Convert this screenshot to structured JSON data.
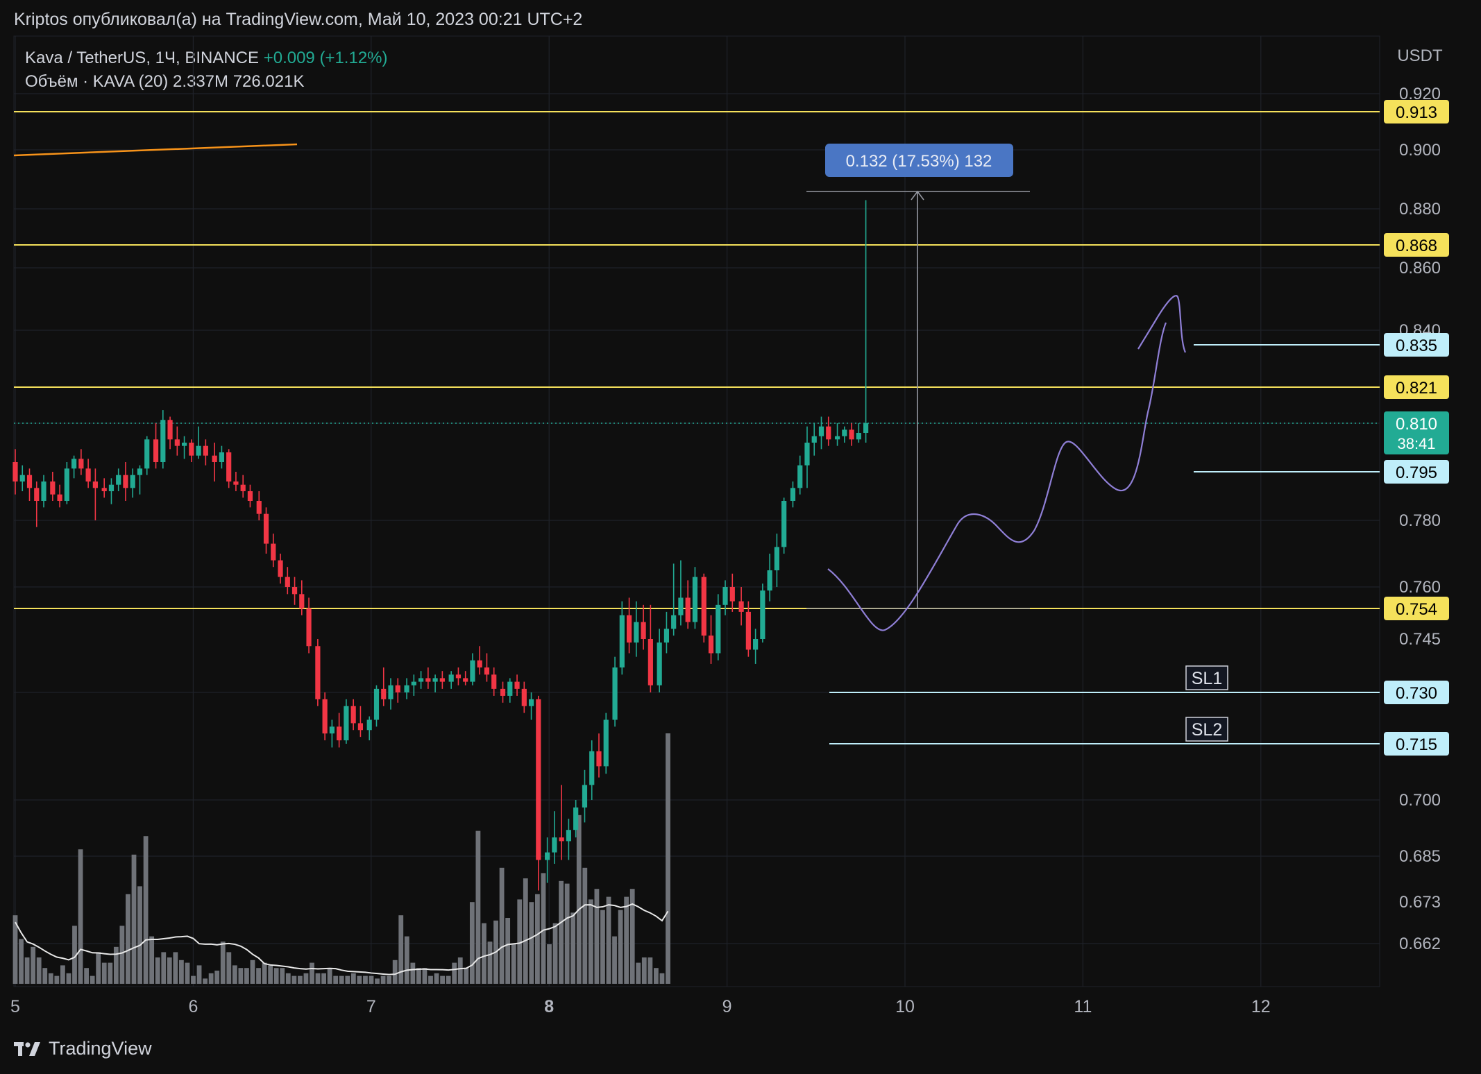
{
  "header": {
    "published": "Kriptos опубликовал(а) на TradingView.com, Май 10, 2023 00:21 UTC+2"
  },
  "legend": {
    "symbol": "Kava / TetherUS, 1Ч, BINANCE",
    "change": "+0.009 (+1.12%)",
    "volume_label": "Объём · KAVA (20)",
    "volume_value": "2.337M",
    "volume_ma": "726.021K"
  },
  "footer": {
    "brand": "TradingView"
  },
  "colors": {
    "background": "#0f0f0f",
    "grid": "#1f2229",
    "up": "#22ab94",
    "down": "#f23645",
    "level_yellow": "#f5e15b",
    "level_cyan": "#bfeefa",
    "projection": "#8f7fd6",
    "orange": "#f7931a",
    "measure_box": "#4a76c4"
  },
  "chart_data": {
    "type": "candlestick",
    "symbol": "KAVA/USDT",
    "interval": "1H",
    "y_axis_unit": "USDT",
    "y_ticks": [
      "0.920",
      "0.900",
      "0.880",
      "0.860",
      "0.840",
      "0.780",
      "0.760",
      "0.745",
      "0.700",
      "0.685",
      "0.673",
      "0.662"
    ],
    "x_ticks": [
      "5",
      "6",
      "7",
      "8",
      "9",
      "10",
      "11",
      "12"
    ],
    "grid": true,
    "candles_approx": [
      [
        5.0,
        0.798,
        0.802,
        0.788,
        0.792
      ],
      [
        5.04,
        0.792,
        0.797,
        0.789,
        0.794
      ],
      [
        5.08,
        0.794,
        0.796,
        0.786,
        0.79
      ],
      [
        5.12,
        0.79,
        0.792,
        0.778,
        0.786
      ],
      [
        5.16,
        0.786,
        0.794,
        0.784,
        0.792
      ],
      [
        5.21,
        0.792,
        0.795,
        0.786,
        0.788
      ],
      [
        5.25,
        0.788,
        0.791,
        0.784,
        0.786
      ],
      [
        5.29,
        0.786,
        0.798,
        0.785,
        0.796
      ],
      [
        5.33,
        0.796,
        0.8,
        0.793,
        0.799
      ],
      [
        5.37,
        0.799,
        0.802,
        0.794,
        0.796
      ],
      [
        5.41,
        0.796,
        0.799,
        0.79,
        0.792
      ],
      [
        5.45,
        0.792,
        0.796,
        0.78,
        0.79
      ],
      [
        5.5,
        0.79,
        0.793,
        0.787,
        0.789
      ],
      [
        5.54,
        0.789,
        0.793,
        0.785,
        0.791
      ],
      [
        5.58,
        0.791,
        0.796,
        0.789,
        0.794
      ],
      [
        5.62,
        0.794,
        0.798,
        0.786,
        0.79
      ],
      [
        5.66,
        0.79,
        0.796,
        0.787,
        0.794
      ],
      [
        5.7,
        0.794,
        0.797,
        0.788,
        0.796
      ],
      [
        5.74,
        0.796,
        0.806,
        0.794,
        0.805
      ],
      [
        5.79,
        0.805,
        0.81,
        0.796,
        0.798
      ],
      [
        5.83,
        0.798,
        0.814,
        0.796,
        0.811
      ],
      [
        5.87,
        0.811,
        0.812,
        0.802,
        0.805
      ],
      [
        5.91,
        0.805,
        0.809,
        0.8,
        0.803
      ],
      [
        5.95,
        0.803,
        0.806,
        0.799,
        0.804
      ],
      [
        5.99,
        0.804,
        0.805,
        0.798,
        0.8
      ],
      [
        6.03,
        0.8,
        0.809,
        0.799,
        0.803
      ],
      [
        6.07,
        0.803,
        0.805,
        0.797,
        0.8
      ],
      [
        6.12,
        0.8,
        0.804,
        0.792,
        0.798
      ],
      [
        6.16,
        0.798,
        0.803,
        0.796,
        0.801
      ],
      [
        6.2,
        0.801,
        0.802,
        0.79,
        0.792
      ],
      [
        6.24,
        0.792,
        0.795,
        0.789,
        0.791
      ],
      [
        6.28,
        0.791,
        0.794,
        0.787,
        0.789
      ],
      [
        6.32,
        0.789,
        0.791,
        0.784,
        0.786
      ],
      [
        6.37,
        0.786,
        0.789,
        0.78,
        0.782
      ],
      [
        6.41,
        0.782,
        0.784,
        0.77,
        0.773
      ],
      [
        6.45,
        0.773,
        0.776,
        0.766,
        0.768
      ],
      [
        6.49,
        0.768,
        0.77,
        0.761,
        0.763
      ],
      [
        6.53,
        0.763,
        0.766,
        0.758,
        0.76
      ],
      [
        6.57,
        0.76,
        0.763,
        0.755,
        0.758
      ],
      [
        6.61,
        0.758,
        0.762,
        0.752,
        0.754
      ],
      [
        6.65,
        0.754,
        0.757,
        0.741,
        0.743
      ],
      [
        6.7,
        0.743,
        0.745,
        0.726,
        0.728
      ],
      [
        6.74,
        0.728,
        0.73,
        0.716,
        0.718
      ],
      [
        6.78,
        0.718,
        0.722,
        0.714,
        0.72
      ],
      [
        6.82,
        0.72,
        0.724,
        0.714,
        0.716
      ],
      [
        6.86,
        0.716,
        0.728,
        0.715,
        0.726
      ],
      [
        6.9,
        0.726,
        0.728,
        0.719,
        0.721
      ],
      [
        6.94,
        0.721,
        0.726,
        0.717,
        0.719
      ],
      [
        6.99,
        0.719,
        0.723,
        0.716,
        0.722
      ],
      [
        7.03,
        0.722,
        0.732,
        0.72,
        0.731
      ],
      [
        7.07,
        0.731,
        0.737,
        0.726,
        0.728
      ],
      [
        7.11,
        0.728,
        0.734,
        0.725,
        0.732
      ],
      [
        7.15,
        0.732,
        0.734,
        0.727,
        0.73
      ],
      [
        7.2,
        0.73,
        0.734,
        0.728,
        0.732
      ],
      [
        7.24,
        0.732,
        0.735,
        0.729,
        0.733
      ],
      [
        7.28,
        0.733,
        0.736,
        0.731,
        0.734
      ],
      [
        7.32,
        0.734,
        0.737,
        0.731,
        0.733
      ],
      [
        7.36,
        0.733,
        0.735,
        0.73,
        0.734
      ],
      [
        7.4,
        0.734,
        0.736,
        0.731,
        0.733
      ],
      [
        7.45,
        0.733,
        0.736,
        0.731,
        0.735
      ],
      [
        7.49,
        0.735,
        0.737,
        0.732,
        0.734
      ],
      [
        7.53,
        0.734,
        0.736,
        0.732,
        0.733
      ],
      [
        7.57,
        0.733,
        0.741,
        0.732,
        0.739
      ],
      [
        7.61,
        0.739,
        0.743,
        0.735,
        0.737
      ],
      [
        7.65,
        0.737,
        0.741,
        0.733,
        0.735
      ],
      [
        7.69,
        0.735,
        0.737,
        0.729,
        0.731
      ],
      [
        7.74,
        0.731,
        0.733,
        0.727,
        0.729
      ],
      [
        7.78,
        0.729,
        0.734,
        0.727,
        0.733
      ],
      [
        7.82,
        0.733,
        0.735,
        0.729,
        0.731
      ],
      [
        7.86,
        0.731,
        0.733,
        0.724,
        0.726
      ],
      [
        7.9,
        0.726,
        0.73,
        0.722,
        0.728
      ],
      [
        7.94,
        0.728,
        0.729,
        0.676,
        0.684
      ],
      [
        7.99,
        0.684,
        0.69,
        0.678,
        0.686
      ],
      [
        8.03,
        0.686,
        0.697,
        0.683,
        0.69
      ],
      [
        8.07,
        0.69,
        0.704,
        0.684,
        0.689
      ],
      [
        8.11,
        0.689,
        0.695,
        0.684,
        0.692
      ],
      [
        8.15,
        0.692,
        0.7,
        0.69,
        0.698
      ],
      [
        8.2,
        0.698,
        0.708,
        0.694,
        0.704
      ],
      [
        8.24,
        0.704,
        0.716,
        0.7,
        0.713
      ],
      [
        8.28,
        0.713,
        0.718,
        0.706,
        0.709
      ],
      [
        8.32,
        0.709,
        0.724,
        0.707,
        0.722
      ],
      [
        8.37,
        0.722,
        0.74,
        0.72,
        0.737
      ],
      [
        8.41,
        0.737,
        0.756,
        0.735,
        0.752
      ],
      [
        8.45,
        0.752,
        0.757,
        0.741,
        0.744
      ],
      [
        8.49,
        0.744,
        0.756,
        0.74,
        0.75
      ],
      [
        8.53,
        0.75,
        0.755,
        0.742,
        0.745
      ],
      [
        8.57,
        0.745,
        0.755,
        0.73,
        0.732
      ],
      [
        8.62,
        0.732,
        0.748,
        0.73,
        0.744
      ],
      [
        8.66,
        0.744,
        0.753,
        0.741,
        0.748
      ],
      [
        8.7,
        0.748,
        0.767,
        0.746,
        0.752
      ],
      [
        8.74,
        0.752,
        0.768,
        0.749,
        0.757
      ],
      [
        8.78,
        0.757,
        0.762,
        0.748,
        0.75
      ],
      [
        8.82,
        0.75,
        0.766,
        0.748,
        0.763
      ],
      [
        8.87,
        0.763,
        0.764,
        0.744,
        0.746
      ],
      [
        8.91,
        0.746,
        0.752,
        0.738,
        0.741
      ],
      [
        8.95,
        0.741,
        0.758,
        0.739,
        0.755
      ],
      [
        8.99,
        0.755,
        0.762,
        0.752,
        0.76
      ],
      [
        9.03,
        0.76,
        0.764,
        0.753,
        0.756
      ],
      [
        9.08,
        0.756,
        0.76,
        0.749,
        0.753
      ],
      [
        9.12,
        0.753,
        0.756,
        0.74,
        0.742
      ],
      [
        9.16,
        0.742,
        0.748,
        0.738,
        0.745
      ],
      [
        9.2,
        0.745,
        0.761,
        0.744,
        0.759
      ],
      [
        9.24,
        0.759,
        0.77,
        0.756,
        0.765
      ],
      [
        9.28,
        0.765,
        0.776,
        0.76,
        0.772
      ],
      [
        9.32,
        0.772,
        0.787,
        0.77,
        0.786
      ],
      [
        9.37,
        0.786,
        0.792,
        0.784,
        0.79
      ],
      [
        9.41,
        0.79,
        0.8,
        0.788,
        0.797
      ],
      [
        9.45,
        0.797,
        0.809,
        0.79,
        0.804
      ],
      [
        9.49,
        0.804,
        0.81,
        0.8,
        0.806
      ],
      [
        9.53,
        0.806,
        0.812,
        0.802,
        0.809
      ],
      [
        9.57,
        0.809,
        0.812,
        0.803,
        0.805
      ],
      [
        9.62,
        0.805,
        0.81,
        0.803,
        0.806
      ],
      [
        9.66,
        0.806,
        0.809,
        0.804,
        0.808
      ],
      [
        9.7,
        0.808,
        0.81,
        0.803,
        0.805
      ],
      [
        9.74,
        0.805,
        0.81,
        0.804,
        0.807
      ],
      [
        9.78,
        0.807,
        0.883,
        0.804,
        0.81
      ]
    ],
    "horizontal_levels": [
      {
        "value": "0.913",
        "style": "yellow"
      },
      {
        "value": "0.868",
        "style": "yellow"
      },
      {
        "value": "0.835",
        "style": "cyan"
      },
      {
        "value": "0.821",
        "style": "yellow"
      },
      {
        "value": "0.795",
        "style": "cyan"
      },
      {
        "value": "0.754",
        "style": "yellow"
      },
      {
        "value": "0.730",
        "style": "cyan"
      },
      {
        "value": "0.715",
        "style": "cyan"
      }
    ],
    "current_price": {
      "value": "0.810",
      "countdown": "38:41"
    },
    "measurement": {
      "label": "0.132 (17.53%) 132",
      "from": 0.754,
      "to": 0.886
    },
    "annotations": [
      {
        "text": "SL1",
        "level": 0.73
      },
      {
        "text": "SL2",
        "level": 0.715
      }
    ],
    "volume_bars_approx": [
      0.26,
      0.17,
      0.1,
      0.14,
      0.1,
      0.06,
      0.04,
      0.03,
      0.07,
      0.04,
      0.22,
      0.51,
      0.06,
      0.03,
      0.12,
      0.08,
      0.08,
      0.14,
      0.22,
      0.34,
      0.49,
      0.37,
      0.56,
      0.18,
      0.1,
      0.12,
      0.1,
      0.12,
      0.09,
      0.08,
      0.03,
      0.07,
      0.02,
      0.04,
      0.05,
      0.16,
      0.12,
      0.07,
      0.06,
      0.06,
      0.09,
      0.06,
      0.08,
      0.07,
      0.06,
      0.06,
      0.04,
      0.03,
      0.03,
      0.04,
      0.08,
      0.04,
      0.04,
      0.06,
      0.03,
      0.03,
      0.03,
      0.04,
      0.03,
      0.03,
      0.03,
      0.02,
      0.03,
      0.03,
      0.09,
      0.26,
      0.18,
      0.08,
      0.06,
      0.06,
      0.03,
      0.04,
      0.03,
      0.03,
      0.08,
      0.1,
      0.06,
      0.31,
      0.58,
      0.23,
      0.16,
      0.24,
      0.44,
      0.25,
      0.15,
      0.32,
      0.4,
      0.31,
      0.34,
      0.42,
      0.15,
      0.23,
      0.39,
      0.38,
      0.27,
      0.64,
      0.44,
      0.32,
      0.36,
      0.28,
      0.33,
      0.18,
      0.28,
      0.33,
      0.36,
      0.08,
      0.1,
      0.1,
      0.06,
      0.04,
      0.95
    ]
  }
}
